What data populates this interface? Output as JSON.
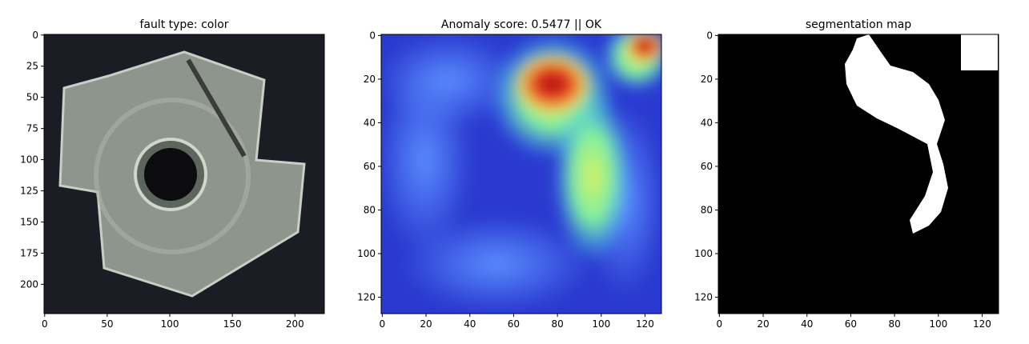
{
  "chart_data": [
    {
      "type": "image",
      "title": "fault type: color",
      "xlim": [
        -0.5,
        223.5
      ],
      "ylim": [
        223.5,
        -0.5
      ],
      "xticks": [
        0,
        50,
        100,
        150,
        200
      ],
      "yticks": [
        0,
        25,
        50,
        75,
        100,
        125,
        150,
        175,
        200
      ]
    },
    {
      "type": "image",
      "title": "Anomaly score: 0.5477 || OK",
      "xlim": [
        -0.5,
        127.5
      ],
      "ylim": [
        127.5,
        -0.5
      ],
      "xticks": [
        0,
        20,
        40,
        60,
        80,
        100,
        120
      ],
      "yticks": [
        0,
        20,
        40,
        60,
        80,
        100,
        120
      ]
    },
    {
      "type": "image",
      "title": "segmentation map",
      "xlim": [
        -0.5,
        127.5
      ],
      "ylim": [
        127.5,
        -0.5
      ],
      "xticks": [
        0,
        20,
        40,
        60,
        80,
        100,
        120
      ],
      "yticks": [
        0,
        20,
        40,
        60,
        80,
        100,
        120
      ]
    }
  ]
}
